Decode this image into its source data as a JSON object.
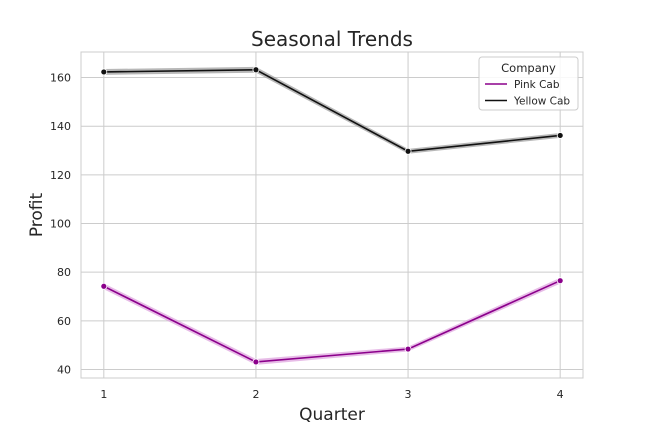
{
  "chart_data": {
    "type": "line",
    "title": "Seasonal Trends",
    "xlabel": "Quarter",
    "ylabel": "Profit",
    "x": [
      1,
      2,
      3,
      4
    ],
    "xlim": [
      0.85,
      4.15
    ],
    "ylim": [
      36.5,
      170.5
    ],
    "yticks": [
      40,
      60,
      80,
      100,
      120,
      140,
      160
    ],
    "grid": true,
    "legend": {
      "title": "Company",
      "placement": "top-right"
    },
    "series": [
      {
        "name": "Pink Cab",
        "values": [
          74.2,
          43.1,
          48.4,
          76.5
        ],
        "band": [
          1.2,
          1.2,
          1.0,
          1.2
        ],
        "color": "#8b008b",
        "band_color": "#dda0dd"
      },
      {
        "name": "Yellow Cab",
        "values": [
          162.3,
          163.2,
          129.7,
          136.2
        ],
        "band": [
          1.2,
          1.2,
          1.0,
          1.0
        ],
        "color": "#111111",
        "band_color": "#9a9a9a"
      }
    ]
  }
}
